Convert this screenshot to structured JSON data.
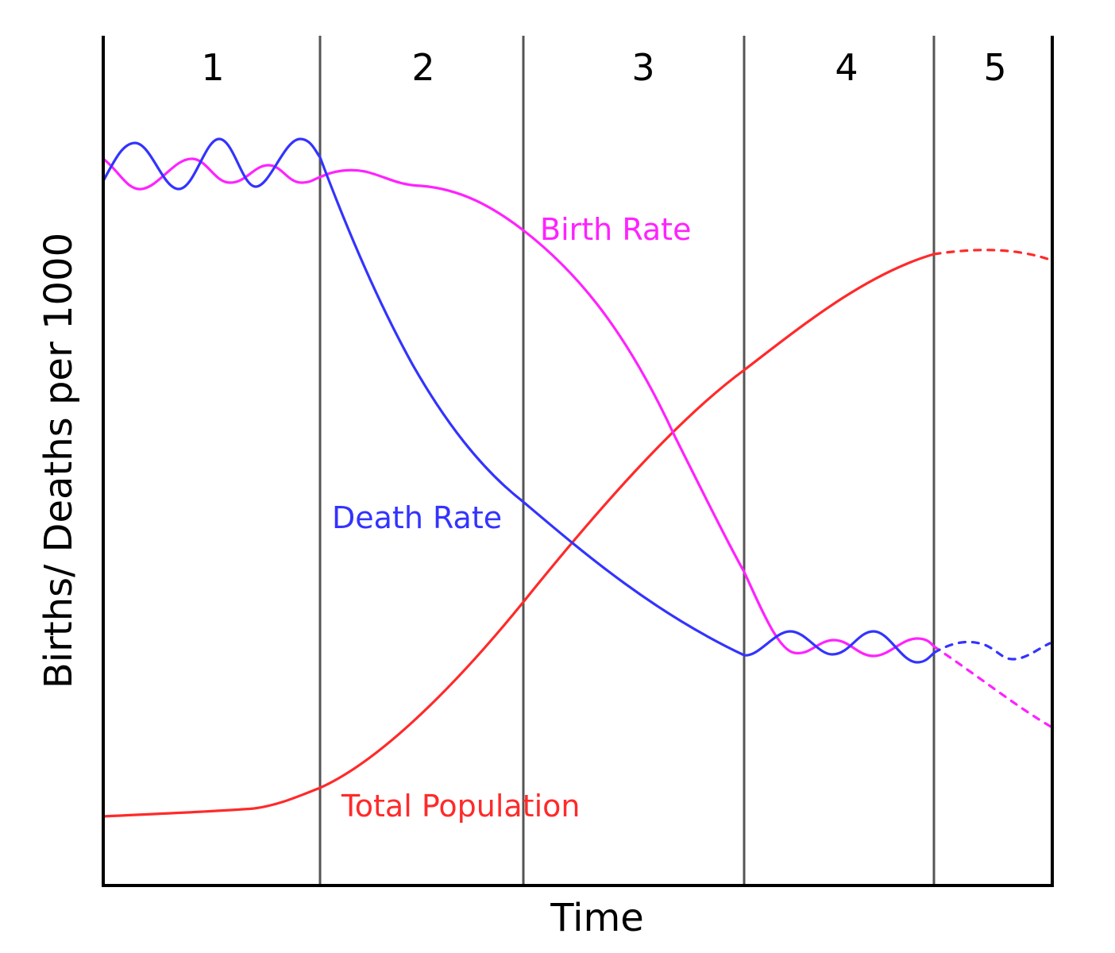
{
  "chart_data": {
    "type": "line",
    "title": "",
    "xlabel": "Time",
    "ylabel": "Births/ Deaths per 1000",
    "x_ticks": false,
    "y_ticks": false,
    "grid": false,
    "stages": [
      "1",
      "2",
      "3",
      "4",
      "5"
    ],
    "series": [
      {
        "name": "Birth Rate",
        "color": "#ff22ff",
        "projected_in_stage": "5",
        "values_by_stage_boundary": [
          0.86,
          0.83,
          0.77,
          0.36,
          0.28,
          0.19
        ]
      },
      {
        "name": "Death Rate",
        "color": "#3333ff",
        "projected_in_stage": "5",
        "values_by_stage_boundary": [
          0.87,
          0.87,
          0.45,
          0.27,
          0.27,
          0.28
        ]
      },
      {
        "name": "Total Population",
        "color": "#ff2a2a",
        "projected_in_stage": "5",
        "values_by_stage_boundary": [
          0.08,
          0.12,
          0.34,
          0.61,
          0.74,
          0.74
        ]
      }
    ]
  },
  "colors": {
    "axis": "#000000",
    "divider": "#555555"
  }
}
